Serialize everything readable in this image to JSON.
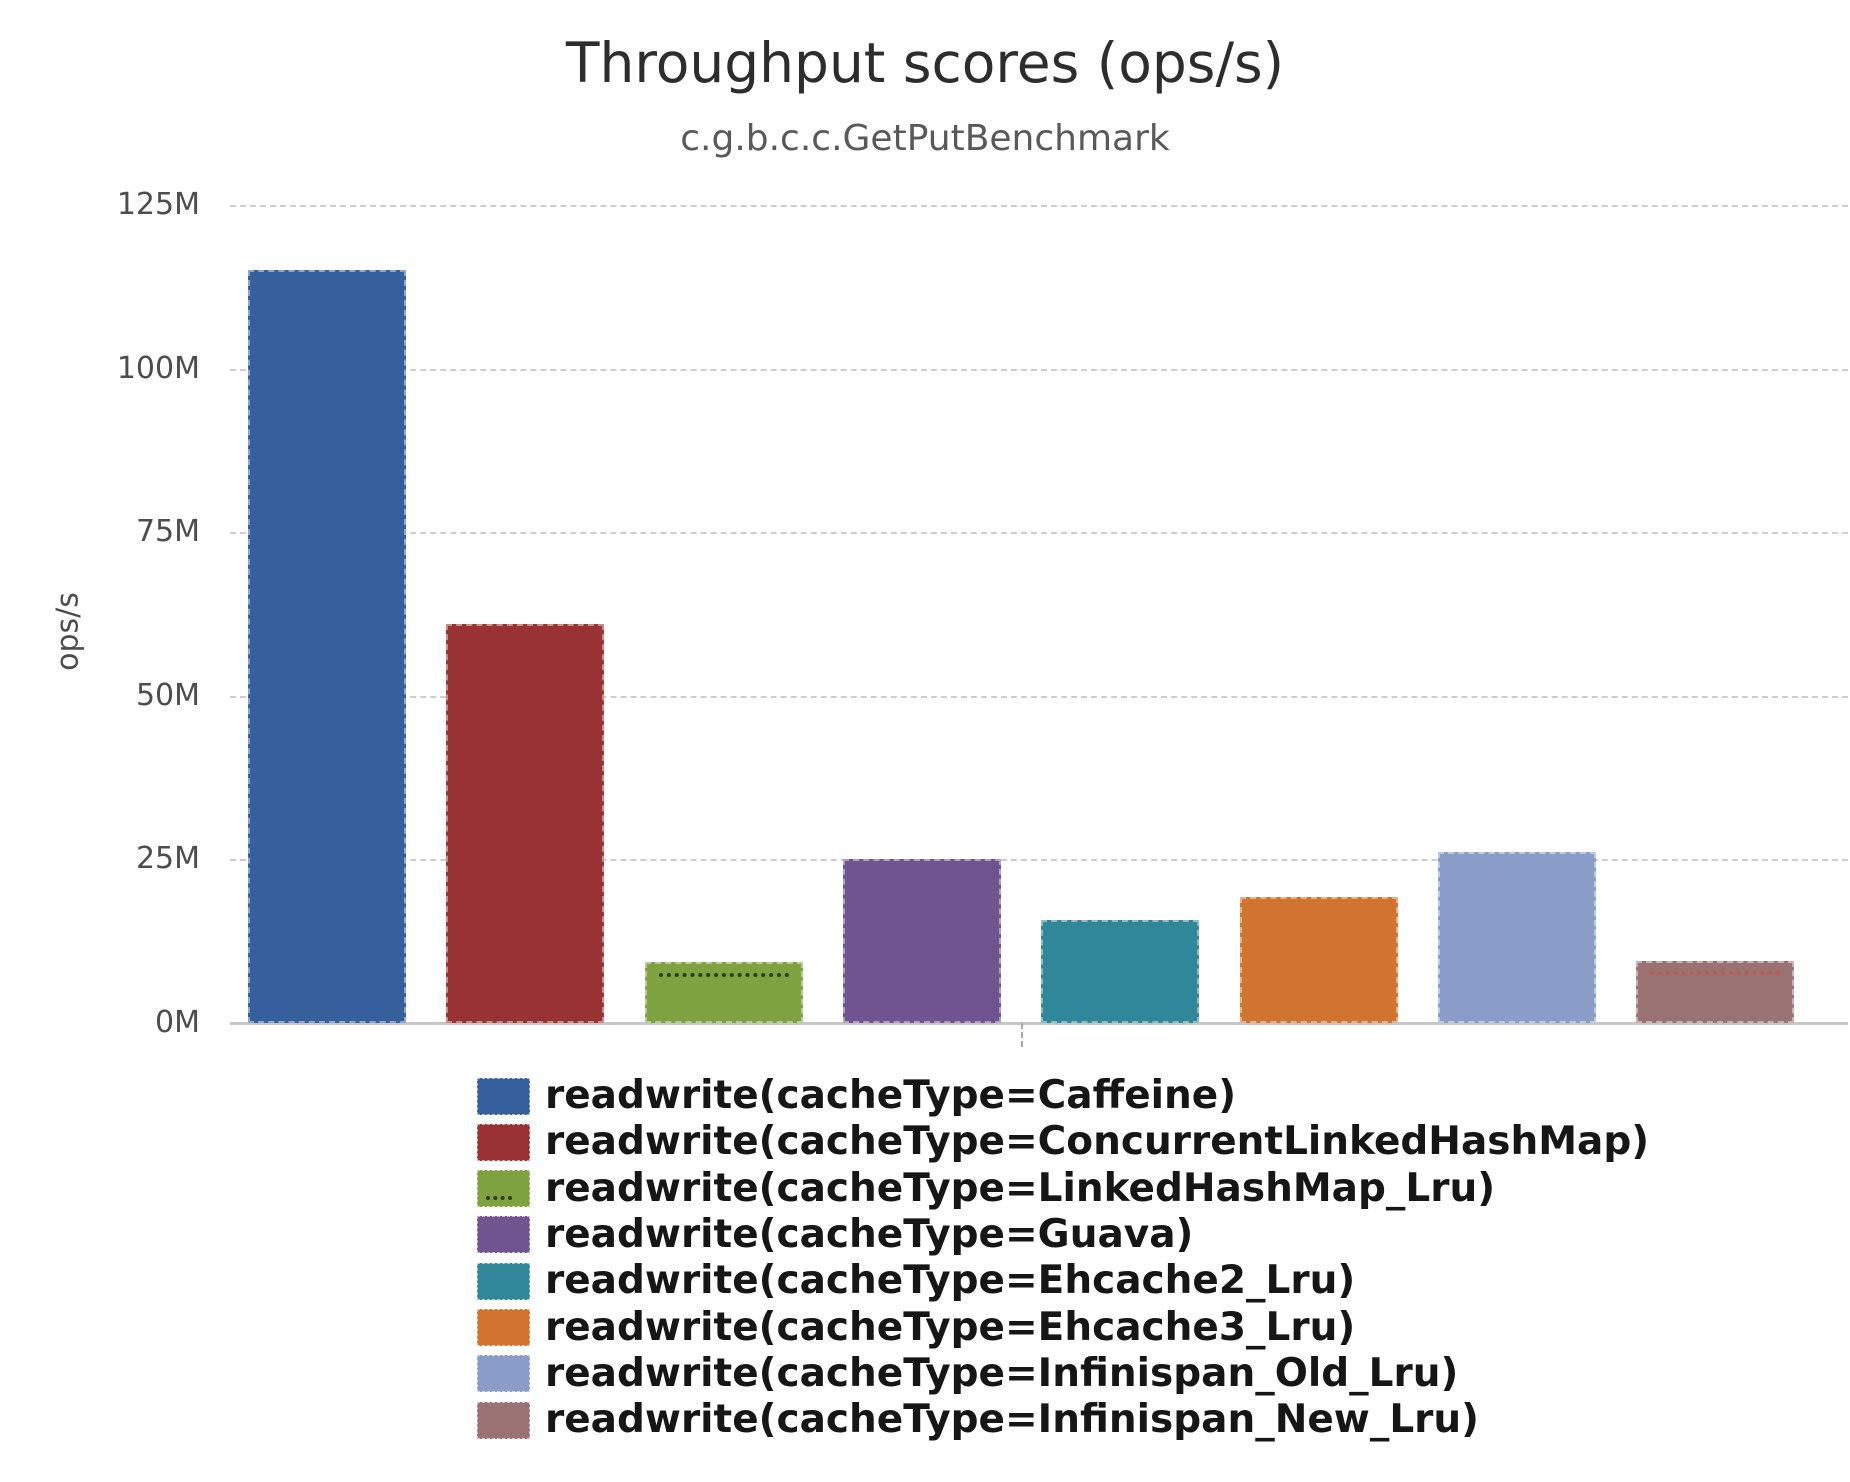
{
  "title": "Throughput scores (ops/s)",
  "subtitle": "c.g.b.c.c.GetPutBenchmark",
  "y_axis_label": "ops/s",
  "chart_data": {
    "type": "bar",
    "title": "Throughput scores (ops/s)",
    "subtitle": "c.g.b.c.c.GetPutBenchmark",
    "xlabel": "",
    "ylabel": "ops/s",
    "y_unit": "M (millions of ops/s)",
    "ylim_mops": [
      0,
      125
    ],
    "ytick_mops": [
      0,
      25,
      50,
      75,
      100,
      125
    ],
    "ytick_labels": [
      "0M",
      "25M",
      "50M",
      "75M",
      "100M",
      "125M"
    ],
    "grid": true,
    "legend_position": "bottom-left",
    "series": [
      {
        "label": "readwrite(cacheType=Caffeine)",
        "value_mops": 115.0,
        "color": "#365f9e"
      },
      {
        "label": "readwrite(cacheType=ConcurrentLinkedHashMap)",
        "value_mops": 61.0,
        "color": "#993233"
      },
      {
        "label": "readwrite(cacheType=LinkedHashMap_Lru)",
        "value_mops": 9.3,
        "color": "#7da23f",
        "error_mark_mops": 7.1,
        "error_mark_color": "#2f3b12",
        "legend_dots": true
      },
      {
        "label": "readwrite(cacheType=Guava)",
        "value_mops": 25.1,
        "color": "#6f5490"
      },
      {
        "label": "readwrite(cacheType=Ehcache2_Lru)",
        "value_mops": 15.8,
        "color": "#2f8799"
      },
      {
        "label": "readwrite(cacheType=Ehcache3_Lru)",
        "value_mops": 19.2,
        "color": "#d0742f"
      },
      {
        "label": "readwrite(cacheType=Infinispan_Old_Lru)",
        "value_mops": 26.2,
        "color": "#8a9dc9"
      },
      {
        "label": "readwrite(cacheType=Infinispan_New_Lru)",
        "value_mops": 9.4,
        "color": "#9b7273",
        "error_mark_mops": 7.3,
        "error_mark_color": "#c2574a"
      }
    ]
  }
}
